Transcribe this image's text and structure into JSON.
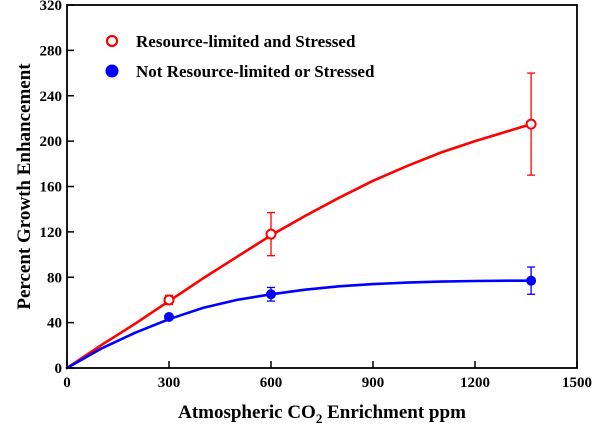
{
  "chart_data": {
    "type": "line",
    "xlabel": {
      "pre": "Atmospheric CO",
      "sub": "2",
      "post": " Enrichment ppm"
    },
    "ylabel": "Percent Growth Enhancement",
    "xlim": [
      0,
      1500
    ],
    "ylim": [
      0,
      320
    ],
    "xticks": [
      0,
      300,
      600,
      900,
      1200,
      1500
    ],
    "yticks": [
      0,
      40,
      80,
      120,
      160,
      200,
      240,
      280,
      320
    ],
    "legend_position": "top-left",
    "series": [
      {
        "name": "Resource-limited and Stressed",
        "color": "#ff0000",
        "marker": "open-circle",
        "points": [
          {
            "x": 300,
            "y": 60,
            "err": 4
          },
          {
            "x": 600,
            "y": 118,
            "err": 19
          },
          {
            "x": 1365,
            "y": 215,
            "err": 45
          }
        ],
        "curve": [
          [
            0,
            0
          ],
          [
            100,
            20
          ],
          [
            200,
            39
          ],
          [
            300,
            59
          ],
          [
            400,
            79
          ],
          [
            500,
            98
          ],
          [
            600,
            117
          ],
          [
            700,
            134
          ],
          [
            800,
            150
          ],
          [
            900,
            165
          ],
          [
            1000,
            178
          ],
          [
            1100,
            190
          ],
          [
            1200,
            200
          ],
          [
            1300,
            209
          ],
          [
            1365,
            215
          ]
        ]
      },
      {
        "name": "Not Resource-limited or Stressed",
        "color": "#0000ff",
        "marker": "filled-circle",
        "points": [
          {
            "x": 300,
            "y": 45,
            "err": 2
          },
          {
            "x": 600,
            "y": 65,
            "err": 6
          },
          {
            "x": 1365,
            "y": 77,
            "err": 12
          }
        ],
        "curve": [
          [
            0,
            0
          ],
          [
            100,
            17
          ],
          [
            200,
            31
          ],
          [
            300,
            43
          ],
          [
            400,
            53
          ],
          [
            500,
            60
          ],
          [
            600,
            65
          ],
          [
            700,
            69
          ],
          [
            800,
            72
          ],
          [
            900,
            74
          ],
          [
            1000,
            75.3
          ],
          [
            1100,
            76.2
          ],
          [
            1200,
            76.7
          ],
          [
            1300,
            77
          ],
          [
            1365,
            77
          ]
        ]
      }
    ]
  }
}
